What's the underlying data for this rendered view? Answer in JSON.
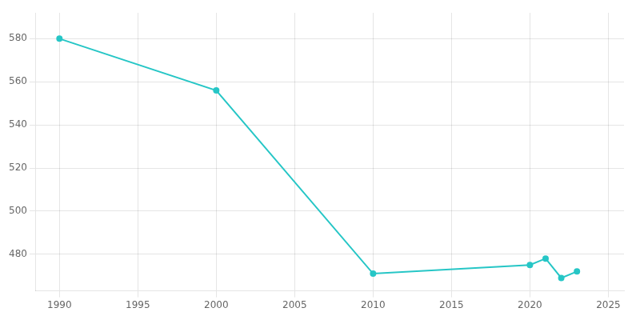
{
  "chart_data": {
    "type": "line",
    "x": [
      1990,
      2000,
      2010,
      2020,
      2021,
      2022,
      2023
    ],
    "values": [
      580,
      556,
      471,
      475,
      478,
      469,
      472
    ],
    "color": "#26c6c6",
    "marker": "circle",
    "xlim": [
      1988.5,
      2026
    ],
    "ylim": [
      463,
      592
    ],
    "xticks": [
      1990,
      1995,
      2000,
      2005,
      2010,
      2015,
      2020,
      2025
    ],
    "yticks": [
      480,
      500,
      520,
      540,
      560,
      580
    ],
    "grid": true
  }
}
